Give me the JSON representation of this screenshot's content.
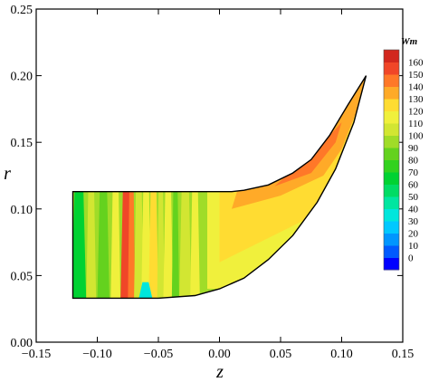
{
  "chart_data": {
    "type": "heatmap",
    "xlabel": "z",
    "ylabel": "r",
    "xlim": [
      -0.15,
      0.15
    ],
    "ylim": [
      0.0,
      0.25
    ],
    "x_ticks": [
      "-0.15",
      "-0.10",
      "-0.05",
      "0.00",
      "0.05",
      "0.10",
      "0.15"
    ],
    "y_ticks": [
      "0.00",
      "0.05",
      "0.10",
      "0.15",
      "0.20",
      "0.25"
    ],
    "legend": {
      "title": "Wm",
      "levels": [
        "0",
        "10",
        "20",
        "30",
        "40",
        "50",
        "60",
        "70",
        "80",
        "90",
        "100",
        "110",
        "120",
        "130",
        "140",
        "150",
        "160"
      ],
      "colors": [
        "#0000ff",
        "#005aff",
        "#0096ff",
        "#00c8ff",
        "#00e6dc",
        "#00e6a0",
        "#00dc64",
        "#00d232",
        "#32d21e",
        "#64d21e",
        "#a0dc28",
        "#d2e632",
        "#f0f03c",
        "#ffdc32",
        "#ffaa28",
        "#ff7828",
        "#f04628",
        "#d2281e"
      ]
    },
    "domain_outline": {
      "z": [
        -0.12,
        0.01,
        0.02,
        0.04,
        0.06,
        0.075,
        0.09,
        0.105,
        0.12,
        0.12,
        0.11,
        0.095,
        0.08,
        0.06,
        0.04,
        0.02,
        0.0,
        -0.02,
        -0.05,
        -0.12,
        -0.12
      ],
      "r": [
        0.113,
        0.113,
        0.114,
        0.118,
        0.127,
        0.137,
        0.155,
        0.178,
        0.2,
        0.2,
        0.165,
        0.13,
        0.105,
        0.08,
        0.062,
        0.048,
        0.04,
        0.035,
        0.033,
        0.033,
        0.113
      ]
    },
    "field_summary": {
      "inlet_region_typical": 100,
      "stripe_peak_near_z_-0.075": 150,
      "low_spot_near_z_-0.06_r_0.035": 30,
      "shroud_peak_near_z_0.07_r_0.14": 150
    }
  }
}
